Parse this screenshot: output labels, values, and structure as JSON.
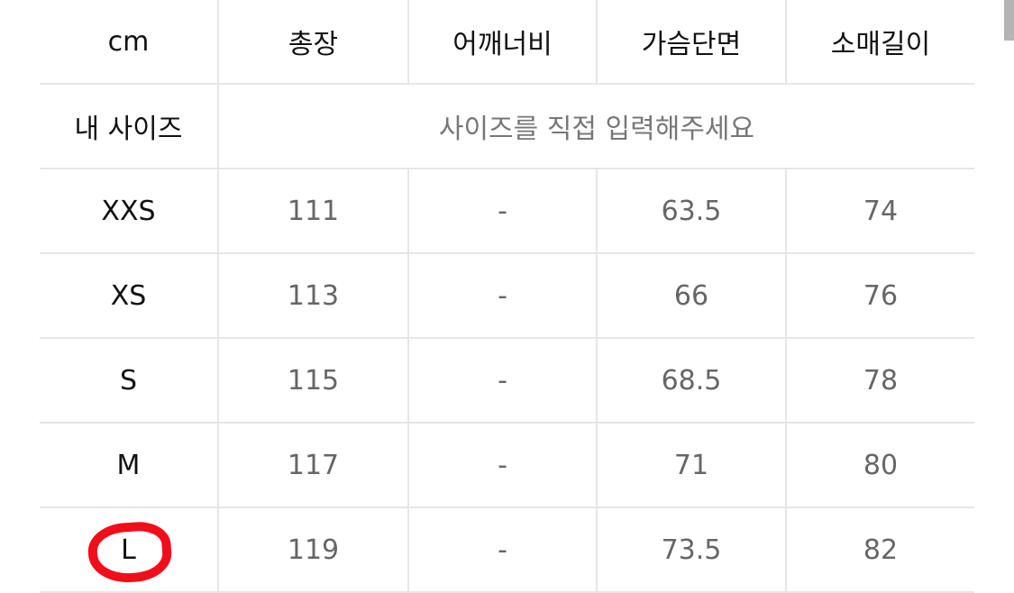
{
  "headers": [
    "cm",
    "총장",
    "어깨너비",
    "가슴단면",
    "소매길이"
  ],
  "my_size": {
    "label": "내 사이즈",
    "placeholder": "사이즈를 직접 입력해주세요"
  },
  "rows": [
    {
      "size": "XXS",
      "values": [
        "111",
        "-",
        "63.5",
        "74"
      ]
    },
    {
      "size": "XS",
      "values": [
        "113",
        "-",
        "66",
        "76"
      ]
    },
    {
      "size": "S",
      "values": [
        "115",
        "-",
        "68.5",
        "78"
      ]
    },
    {
      "size": "M",
      "values": [
        "117",
        "-",
        "71",
        "80"
      ]
    },
    {
      "size": "L",
      "values": [
        "119",
        "-",
        "73.5",
        "82"
      ]
    }
  ],
  "highlight": {
    "size": "L",
    "color": "#f20d1a"
  }
}
